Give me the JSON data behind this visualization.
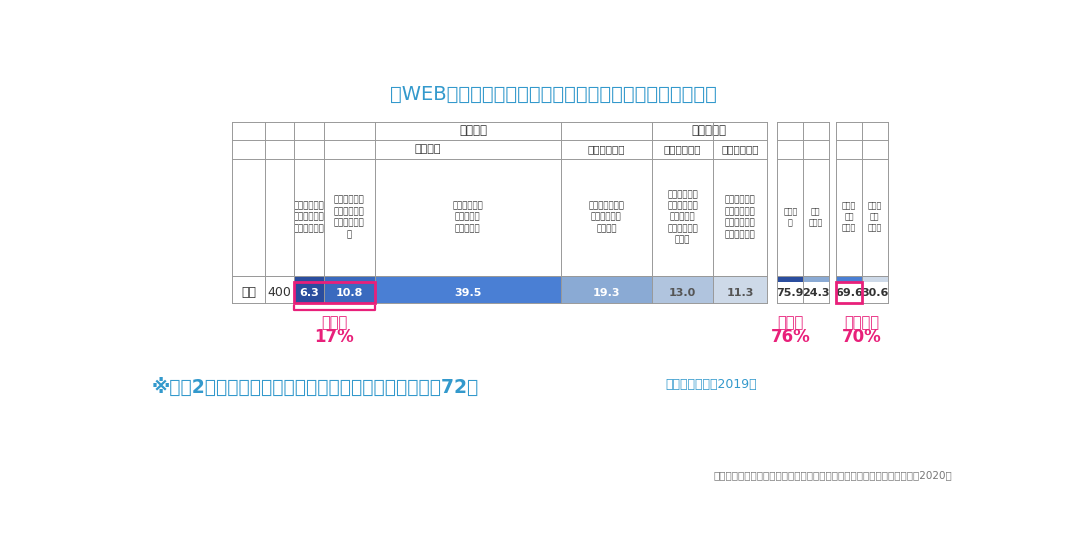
{
  "title": "＜WEBオープンキャンパスの参加率・認知度と参加意向＞",
  "background_color": "#ffffff",
  "title_color": "#3399cc",
  "title_fontsize": 14,
  "row_label": "全体",
  "row_n": "400",
  "segments": [
    6.3,
    10.8,
    39.5,
    19.3,
    13.0,
    11.3
  ],
  "bar_colors": [
    "#2a4d9e",
    "#3a6abf",
    "#4a7fd4",
    "#8aaad4",
    "#b0c4de",
    "#cdd9e8"
  ],
  "summary_values": [
    "75.9",
    "24.3",
    "69.6",
    "30.6"
  ],
  "pink_color": "#e8207a",
  "participation_rate_label": "参加率",
  "participation_rate_value": "17%",
  "awareness_rate_label": "認知率",
  "awareness_rate_value": "76%",
  "intention_label": "参加意向",
  "intention_value": "70%",
  "header_row1_left": "認知・計",
  "header_row1_right": "非認知・計",
  "header_row2_c0_2": "参加意向",
  "header_row2_c3": "参加意向なし",
  "header_row2_c4": "参加意向あり",
  "header_row2_c5": "参加意向なし",
  "col_texts": [
    "知っているし\n複数回参加し\nたことがある",
    "知っているし\n一度だけ参加\nしたことがあ\nる",
    "知っているし\n行きたいと\n思っている",
    "知っているが、\n行きたいとは\n思わない",
    "知らなかった\nが、（今知っ\nたことで）\n行ってみたい\nと思う",
    "知らなかった\nが、（今知っ\nても）行きた\nいは思わない"
  ],
  "sum_col_texts": [
    "認知・\n計",
    "非認\n知・計",
    "参加意\n向あ\nり・計",
    "参加意\n向な\nし・計"
  ],
  "footer_main": "※高校2年生時における、オープンキャンパス参加率は72％",
  "footer_sub": "（進学センサス2019）",
  "footer_color": "#3399cc",
  "source_text": "出典：リクルート進学総研「コロナウイルス流行による進路選択影響調査2020」",
  "source_color": "#777777"
}
